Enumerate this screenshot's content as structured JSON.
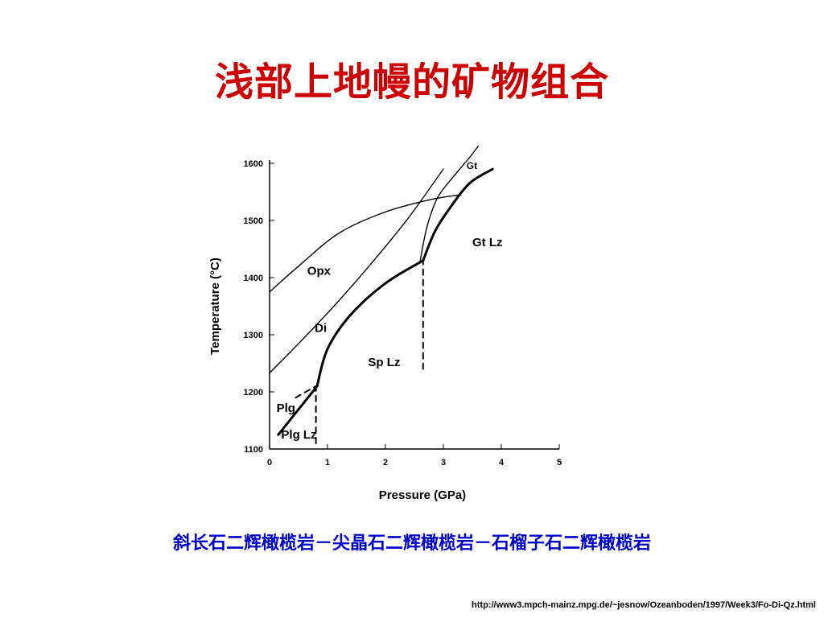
{
  "slide": {
    "title": "浅部上地幔的矿物组合",
    "caption": "斜长石二辉橄榄岩－尖晶石二辉橄榄岩－石榴子石二辉橄榄岩",
    "source": "http://www3.mpch-mainz.mpg.de/~jesnow/Ozeanboden/1997/Week3/Fo-Di-Qz.html",
    "colors": {
      "title": "#cc0000",
      "caption": "#0000cc",
      "ink": "#000000"
    }
  },
  "chart_data": {
    "type": "line",
    "title": "",
    "xlabel": "Pressure (GPa)",
    "ylabel": "Temperature (°C)",
    "xlim": [
      0,
      5
    ],
    "ylim": [
      1100,
      1600
    ],
    "xticks": [
      "0",
      "1",
      "2",
      "3",
      "4",
      "5"
    ],
    "yticks": [
      "1100",
      "1200",
      "1300",
      "1400",
      "1500",
      "1600"
    ],
    "grid": false,
    "series": [
      {
        "name": "Opx",
        "style": "thin",
        "x": [
          0,
          0.5,
          1.2,
          2.0,
          2.8,
          3.3
        ],
        "y": [
          1375,
          1420,
          1478,
          1515,
          1537,
          1545
        ]
      },
      {
        "name": "Di",
        "style": "thin",
        "x": [
          0,
          0.6,
          1.2,
          1.8,
          2.4,
          3.0
        ],
        "y": [
          1233,
          1295,
          1360,
          1430,
          1505,
          1590
        ]
      },
      {
        "name": "",
        "style": "thin",
        "x": [
          2.6,
          2.72,
          2.9,
          3.2,
          3.45,
          3.6
        ],
        "y": [
          1430,
          1490,
          1540,
          1580,
          1610,
          1630
        ]
      },
      {
        "name": "",
        "style": "thick",
        "x": [
          0.15,
          0.82
        ],
        "y": [
          1125,
          1210
        ]
      },
      {
        "name": "",
        "style": "thick",
        "x": [
          0.82,
          1.0,
          1.4,
          2.0,
          2.65
        ],
        "y": [
          1210,
          1275,
          1335,
          1390,
          1430
        ]
      },
      {
        "name": "",
        "style": "thick",
        "x": [
          2.65,
          2.85,
          3.1,
          3.45,
          3.85
        ],
        "y": [
          1430,
          1480,
          1520,
          1565,
          1590
        ]
      },
      {
        "name": "",
        "style": "dashed",
        "x": [
          0.8,
          0.8
        ],
        "y": [
          1110,
          1210
        ]
      },
      {
        "name": "",
        "style": "dashed",
        "x": [
          0.45,
          0.8
        ],
        "y": [
          1190,
          1210
        ]
      },
      {
        "name": "",
        "style": "dashed",
        "x": [
          2.65,
          2.65
        ],
        "y": [
          1240,
          1430
        ]
      }
    ],
    "annotations": [
      {
        "text": "Opx",
        "x": 0.65,
        "y": 1405
      },
      {
        "text": "Di",
        "x": 0.78,
        "y": 1305
      },
      {
        "text": "Gt",
        "x": 3.4,
        "y": 1590
      },
      {
        "text": "Gt Lz",
        "x": 3.5,
        "y": 1455
      },
      {
        "text": "Sp Lz",
        "x": 1.7,
        "y": 1245
      },
      {
        "text": "Plg",
        "x": 0.12,
        "y": 1165
      },
      {
        "text": "Plg Lz",
        "x": 0.2,
        "y": 1118
      }
    ]
  }
}
